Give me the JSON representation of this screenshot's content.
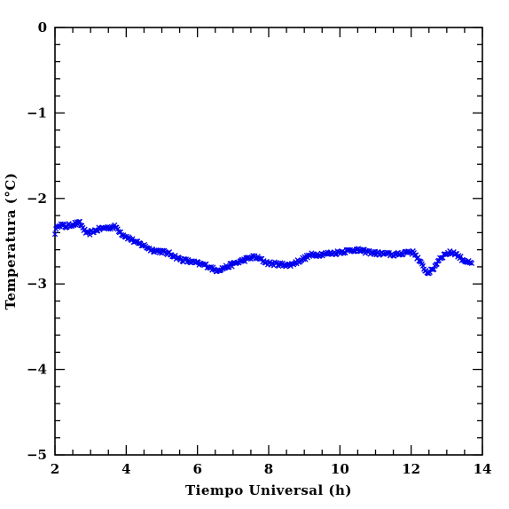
{
  "chart_data": {
    "type": "scatter",
    "xlabel": "Tiempo Universal (h)",
    "ylabel": "Temperatura (°C)",
    "xlim": [
      2,
      14
    ],
    "ylim": [
      -5,
      0
    ],
    "xticks": [
      2,
      4,
      6,
      8,
      10,
      12,
      14
    ],
    "yticks": [
      -5,
      -4,
      -3,
      -2,
      -1,
      0
    ],
    "marker": "x",
    "color": "#0000ee",
    "grid": false,
    "keypoints": [
      [
        2.0,
        -2.4
      ],
      [
        2.1,
        -2.3
      ],
      [
        2.3,
        -2.33
      ],
      [
        2.5,
        -2.3
      ],
      [
        2.7,
        -2.29
      ],
      [
        2.9,
        -2.42
      ],
      [
        3.1,
        -2.38
      ],
      [
        3.3,
        -2.35
      ],
      [
        3.5,
        -2.34
      ],
      [
        3.7,
        -2.33
      ],
      [
        3.9,
        -2.42
      ],
      [
        4.1,
        -2.47
      ],
      [
        4.3,
        -2.52
      ],
      [
        4.5,
        -2.55
      ],
      [
        4.7,
        -2.6
      ],
      [
        5.0,
        -2.62
      ],
      [
        5.3,
        -2.66
      ],
      [
        5.5,
        -2.71
      ],
      [
        5.7,
        -2.73
      ],
      [
        6.0,
        -2.76
      ],
      [
        6.3,
        -2.79
      ],
      [
        6.5,
        -2.84
      ],
      [
        6.7,
        -2.82
      ],
      [
        7.0,
        -2.77
      ],
      [
        7.3,
        -2.72
      ],
      [
        7.6,
        -2.68
      ],
      [
        7.8,
        -2.72
      ],
      [
        8.0,
        -2.76
      ],
      [
        8.3,
        -2.77
      ],
      [
        8.6,
        -2.78
      ],
      [
        8.9,
        -2.72
      ],
      [
        9.2,
        -2.66
      ],
      [
        9.5,
        -2.65
      ],
      [
        9.8,
        -2.64
      ],
      [
        10.1,
        -2.62
      ],
      [
        10.4,
        -2.6
      ],
      [
        10.7,
        -2.62
      ],
      [
        11.0,
        -2.64
      ],
      [
        11.3,
        -2.65
      ],
      [
        11.6,
        -2.66
      ],
      [
        11.9,
        -2.62
      ],
      [
        12.1,
        -2.64
      ],
      [
        12.3,
        -2.78
      ],
      [
        12.45,
        -2.87
      ],
      [
        12.6,
        -2.84
      ],
      [
        12.8,
        -2.7
      ],
      [
        13.0,
        -2.64
      ],
      [
        13.2,
        -2.63
      ],
      [
        13.4,
        -2.7
      ],
      [
        13.7,
        -2.77
      ]
    ]
  }
}
